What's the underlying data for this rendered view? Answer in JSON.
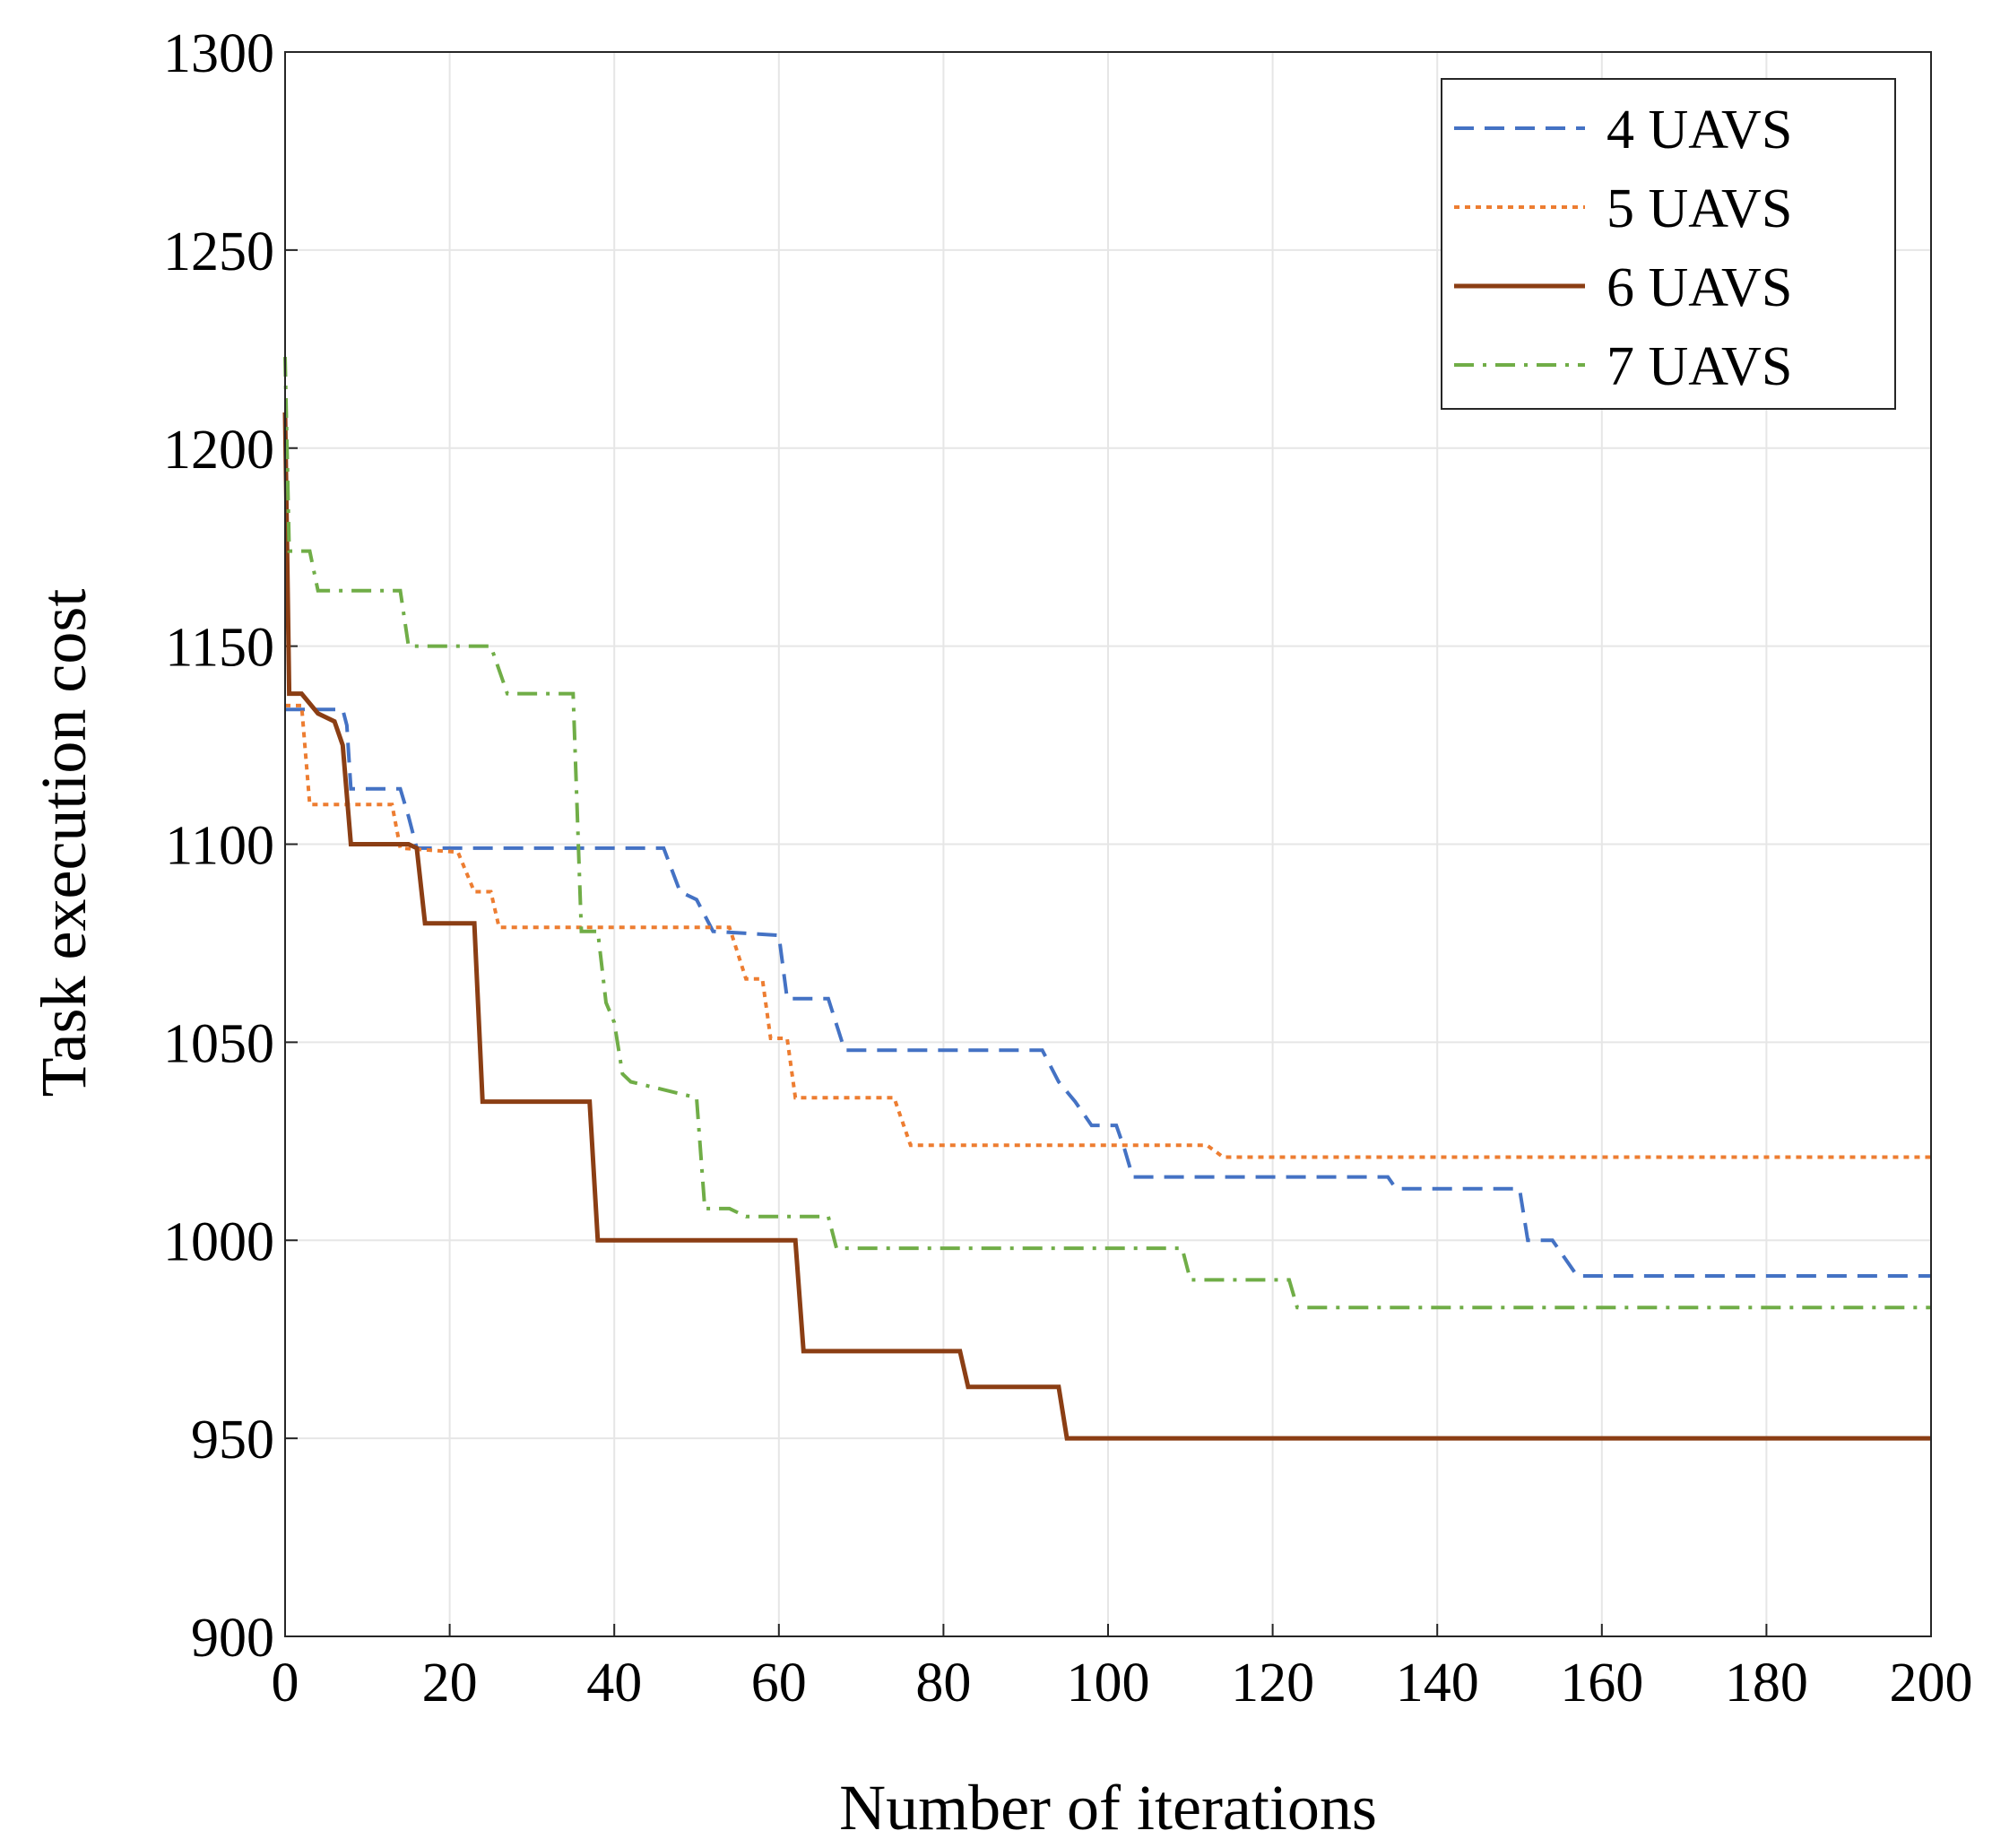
{
  "chart_data": {
    "type": "line",
    "title": "",
    "xlabel": "Number of iterations",
    "ylabel": "Task execution cost",
    "xlim": [
      0,
      200
    ],
    "ylim": [
      900,
      1300
    ],
    "xticks": [
      0,
      20,
      40,
      60,
      80,
      100,
      120,
      140,
      160,
      180,
      200
    ],
    "yticks": [
      900,
      950,
      1000,
      1050,
      1100,
      1150,
      1200,
      1250,
      1300
    ],
    "grid": true,
    "legend_position": "top-right",
    "series": [
      {
        "name": "4 UAVS",
        "color": "#4472C4",
        "style": "dashed",
        "points": [
          [
            0,
            1134
          ],
          [
            7,
            1134
          ],
          [
            7.5,
            1130
          ],
          [
            8,
            1114
          ],
          [
            14,
            1114
          ],
          [
            15,
            1107
          ],
          [
            16,
            1099
          ],
          [
            46,
            1099
          ],
          [
            48,
            1088
          ],
          [
            50,
            1086
          ],
          [
            52,
            1078
          ],
          [
            60,
            1077
          ],
          [
            61,
            1061
          ],
          [
            66,
            1061
          ],
          [
            68,
            1048
          ],
          [
            92,
            1048
          ],
          [
            94,
            1040
          ],
          [
            96,
            1035
          ],
          [
            98,
            1029
          ],
          [
            101,
            1029
          ],
          [
            102,
            1023
          ],
          [
            103,
            1016
          ],
          [
            134,
            1016
          ],
          [
            135,
            1013
          ],
          [
            150,
            1013
          ],
          [
            151,
            1000
          ],
          [
            154,
            1000
          ],
          [
            157,
            991
          ],
          [
            200,
            991
          ]
        ]
      },
      {
        "name": "5 UAVS",
        "color": "#ED7D31",
        "style": "dotted",
        "points": [
          [
            0,
            1135
          ],
          [
            2,
            1135
          ],
          [
            3,
            1110
          ],
          [
            13,
            1110
          ],
          [
            14,
            1099
          ],
          [
            21,
            1098
          ],
          [
            23,
            1088
          ],
          [
            25,
            1088
          ],
          [
            26,
            1079
          ],
          [
            54,
            1079
          ],
          [
            56,
            1066
          ],
          [
            58,
            1066
          ],
          [
            59,
            1051
          ],
          [
            61,
            1051
          ],
          [
            62,
            1036
          ],
          [
            74,
            1036
          ],
          [
            76,
            1024
          ],
          [
            112,
            1024
          ],
          [
            114,
            1021
          ],
          [
            200,
            1021
          ]
        ]
      },
      {
        "name": "6 UAVS",
        "color": "#8B3E14",
        "style": "solid",
        "points": [
          [
            0,
            1209
          ],
          [
            0.5,
            1138
          ],
          [
            2,
            1138
          ],
          [
            4,
            1133
          ],
          [
            6,
            1131
          ],
          [
            7,
            1125
          ],
          [
            8,
            1100
          ],
          [
            15,
            1100
          ],
          [
            16,
            1099
          ],
          [
            17,
            1080
          ],
          [
            23,
            1080
          ],
          [
            24,
            1035
          ],
          [
            37,
            1035
          ],
          [
            38,
            1000
          ],
          [
            62,
            1000
          ],
          [
            63,
            972
          ],
          [
            82,
            972
          ],
          [
            83,
            963
          ],
          [
            94,
            963
          ],
          [
            95,
            950
          ],
          [
            200,
            950
          ]
        ]
      },
      {
        "name": "7 UAVS",
        "color": "#70AD47",
        "style": "dashdot",
        "points": [
          [
            0,
            1223
          ],
          [
            0.5,
            1174
          ],
          [
            3,
            1174
          ],
          [
            4,
            1164
          ],
          [
            14,
            1164
          ],
          [
            15,
            1150
          ],
          [
            25,
            1150
          ],
          [
            27,
            1138
          ],
          [
            35,
            1138
          ],
          [
            36,
            1078
          ],
          [
            38,
            1078
          ],
          [
            39,
            1060
          ],
          [
            40,
            1055
          ],
          [
            41,
            1042
          ],
          [
            42,
            1040
          ],
          [
            50,
            1036
          ],
          [
            51,
            1008
          ],
          [
            54,
            1008
          ],
          [
            56,
            1006
          ],
          [
            66,
            1006
          ],
          [
            67,
            998
          ],
          [
            109,
            998
          ],
          [
            110,
            990
          ],
          [
            122,
            990
          ],
          [
            123,
            983
          ],
          [
            200,
            983
          ]
        ]
      }
    ]
  }
}
